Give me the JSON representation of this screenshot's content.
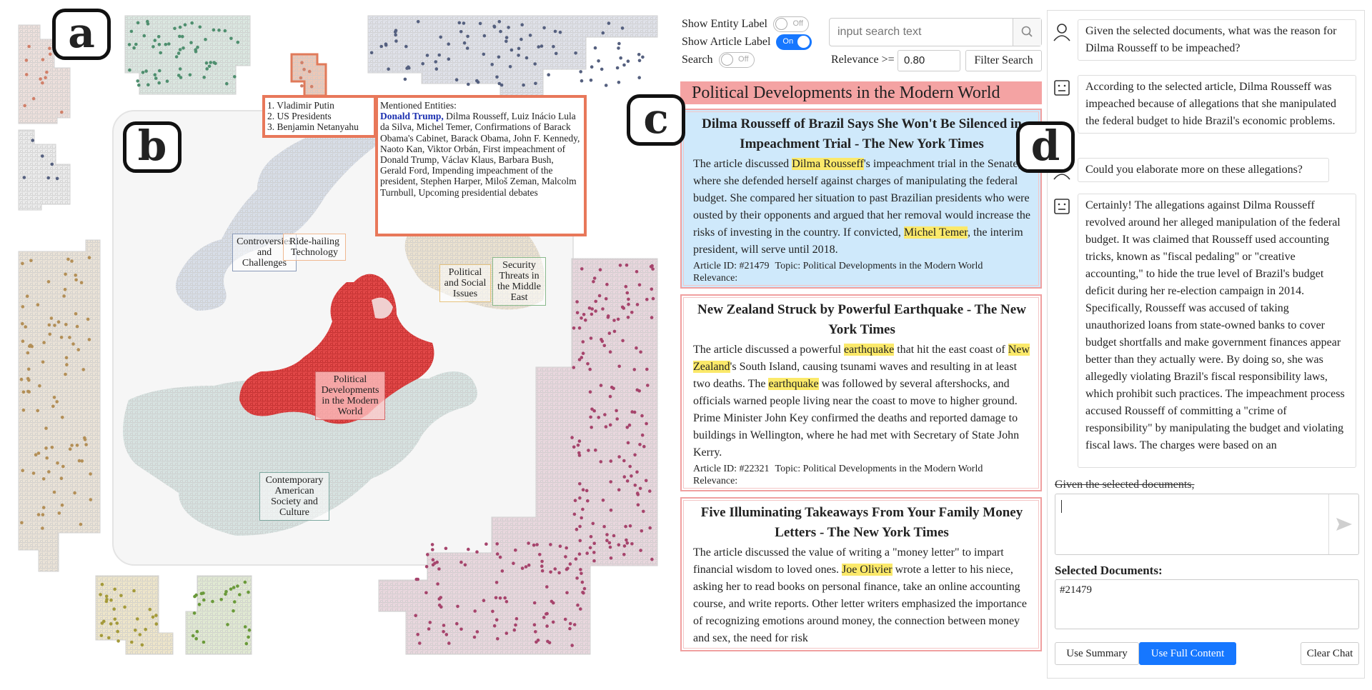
{
  "map": {
    "panel_letters": {
      "a": "a",
      "b": "b",
      "c": "c",
      "d": "d"
    },
    "cluster_labels": [
      {
        "id": "controversies",
        "text": "Controversies and Challenges"
      },
      {
        "id": "ride-hailing",
        "text": "Ride-hailing Technology"
      },
      {
        "id": "political-social",
        "text": "Political and Social Issues"
      },
      {
        "id": "security-threats",
        "text": "Security Threats in the Middle East"
      },
      {
        "id": "political-developments",
        "text": "Political Developments in the Modern World"
      },
      {
        "id": "contemporary-american",
        "text": "Contemporary American Society and Culture"
      }
    ],
    "top_entities": [
      "1. Vladimir Putin",
      "2. US Presidents",
      "3. Benjamin Netanyahu"
    ],
    "mentioned_entities": {
      "title": "Mentioned Entities:",
      "highlight": "Donald Trump,",
      "rest": "Dilma Rousseff, Luiz Inácio Lula da Silva, Michel Temer, Confirmations of Barack Obama's Cabinet, Barack Obama, John F. Kennedy, Naoto Kan, Viktor Orbán, First impeachment of Donald Trump, Václav Klaus, Barbara Bush, Gerald Ford, Impending impeachment of the president, Stephen Harper, Miloš Zeman, Malcolm Turnbull, Upcoming presidential debates"
    },
    "colors": {
      "green": "#4f8f6f",
      "navy": "#55607f",
      "salmon": "#d0806a",
      "tan": "#b38f57",
      "magenta": "#a6446c",
      "olive": "#a49a3a",
      "lightgreen": "#6a9a3a",
      "red": "#e04040"
    }
  },
  "controls": {
    "show_entity_label": "Show Entity Label",
    "entity_toggle": "Off",
    "show_article_label": "Show Article Label",
    "article_toggle": "On",
    "search_label": "Search",
    "search_toggle": "Off",
    "search_placeholder": "input search text",
    "search_icon": "search-icon",
    "relevance_label": "Relevance >=",
    "relevance_value": "0.80",
    "filter_button": "Filter Search"
  },
  "topic_header": "Political Developments in the Modern World",
  "articles": [
    {
      "title": "Dilma Rousseff of Brazil Says She Won't Be Silenced in Impeachment Trial - The New York Times",
      "parts": [
        "The article discussed ",
        "Dilma Rousseff",
        "'s impeachment trial in the Senate, where she defended herself against charges of manipulating the federal budget. She compared her situation to past Brazilian presidents who were ousted by their opponents and argued that her removal would increase the risks of investing in the country. If convicted, ",
        "Michel Temer",
        ", the interim president, will serve until 2018."
      ],
      "article_id": "Article ID: #21479",
      "topic": "Topic: Political Developments in the Modern World",
      "relevance": "Relevance:",
      "selected": true
    },
    {
      "title": "New Zealand Struck by Powerful Earthquake - The New York Times",
      "parts": [
        "The article discussed a powerful ",
        "earthquake",
        " that hit the east coast of ",
        "New Zealand",
        "'s South Island, causing tsunami waves and resulting in at least two deaths. The ",
        "earthquake",
        " was followed by several aftershocks, and officials warned people living near the coast to move to higher ground. Prime Minister John Key confirmed the deaths and reported damage to buildings in Wellington, where he had met with Secretary of State John Kerry."
      ],
      "article_id": "Article ID: #22321",
      "topic": "Topic: Political Developments in the Modern World",
      "relevance": "Relevance:",
      "selected": false
    },
    {
      "title": "Five Illuminating Takeaways From Your Family Money Letters - The New York Times",
      "parts": [
        "The article discussed the value of writing a \"money letter\" to impart financial wisdom to loved ones. ",
        "Joe Olivier",
        " wrote a letter to his niece, asking her to read books on personal finance, take an online accounting course, and write reports. Other letter writers emphasized the importance of recognizing emotions around money, the connection between money and sex, the need for risk"
      ],
      "article_id": "",
      "topic": "",
      "relevance": "",
      "selected": false
    }
  ],
  "chat": {
    "messages": [
      {
        "role": "user",
        "text": "Given the selected documents, what was the reason for Dilma Rousseff to be impeached?"
      },
      {
        "role": "bot",
        "text": "According to the selected article, Dilma Rousseff was impeached because of allegations that she manipulated the federal budget to hide Brazil's economic problems."
      },
      {
        "role": "user",
        "text": "Could you elaborate more on these allegations?"
      },
      {
        "role": "bot",
        "text": "Certainly! The allegations against Dilma Rousseff revolved around her alleged manipulation of the federal budget. It was claimed that Rousseff used accounting tricks, known as \"fiscal pedaling\" or \"creative accounting,\" to hide the true level of Brazil's budget deficit during her re-election campaign in 2014. Specifically, Rousseff was accused of taking unauthorized loans from state-owned banks to cover budget shortfalls and make government finances appear better than they actually were. By doing so, she was allegedly violating Brazil's fiscal responsibility laws, which prohibit such practices. The impeachment process accused Rousseff of committing a \"crime of responsibility\" by manipulating the budget and violating fiscal laws. The charges were based on an"
      }
    ],
    "input_hint": "Given the selected documents,",
    "send_icon": "send-icon",
    "selected_label": "Selected Documents:",
    "selected_docs": "#21479",
    "use_summary": "Use Summary",
    "use_full_content": "Use Full Content",
    "clear_chat": "Clear Chat"
  }
}
